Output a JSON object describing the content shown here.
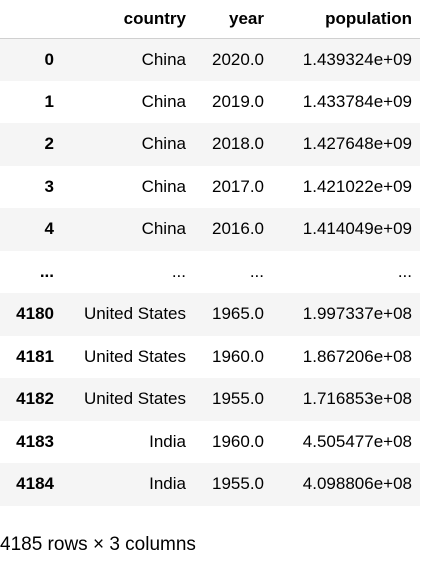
{
  "dataframe": {
    "columns": [
      "",
      "country",
      "year",
      "population"
    ],
    "rows": [
      {
        "index": "0",
        "country": "China",
        "year": "2020.0",
        "population": "1.439324e+09"
      },
      {
        "index": "1",
        "country": "China",
        "year": "2019.0",
        "population": "1.433784e+09"
      },
      {
        "index": "2",
        "country": "China",
        "year": "2018.0",
        "population": "1.427648e+09"
      },
      {
        "index": "3",
        "country": "China",
        "year": "2017.0",
        "population": "1.421022e+09"
      },
      {
        "index": "4",
        "country": "China",
        "year": "2016.0",
        "population": "1.414049e+09"
      },
      {
        "index": "...",
        "country": "...",
        "year": "...",
        "population": "..."
      },
      {
        "index": "4180",
        "country": "United States",
        "year": "1965.0",
        "population": "1.997337e+08"
      },
      {
        "index": "4181",
        "country": "United States",
        "year": "1960.0",
        "population": "1.867206e+08"
      },
      {
        "index": "4182",
        "country": "United States",
        "year": "1955.0",
        "population": "1.716853e+08"
      },
      {
        "index": "4183",
        "country": "India",
        "year": "1960.0",
        "population": "4.505477e+08"
      },
      {
        "index": "4184",
        "country": "India",
        "year": "1955.0",
        "population": "4.098806e+08"
      }
    ],
    "shape_text": "4185 rows × 3 columns"
  },
  "colors": {
    "stripe": "#f5f5f5",
    "header_border": "#d0d0d0",
    "text": "#000000"
  }
}
